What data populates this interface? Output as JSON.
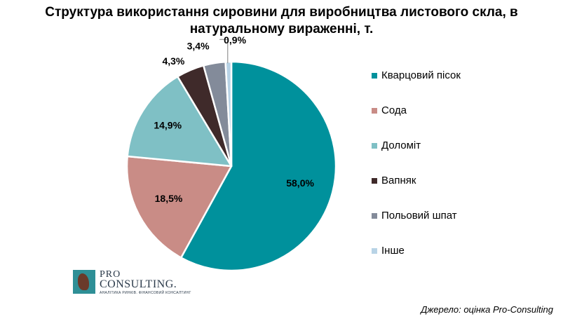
{
  "chart_data": {
    "type": "pie",
    "title_lines": [
      "Структура використання сировини для виробництва листового скла, в",
      "натуральному вираженні, т."
    ],
    "slices": [
      {
        "name": "Кварцовий пісок",
        "value": 58.0,
        "label": "58,0%",
        "color": "#00919c"
      },
      {
        "name": "Сода",
        "value": 18.5,
        "label": "18,5%",
        "color": "#c98c86"
      },
      {
        "name": "Доломіт",
        "value": 14.9,
        "label": "14,9%",
        "color": "#7fc0c5"
      },
      {
        "name": "Вапняк",
        "value": 4.3,
        "label": "4,3%",
        "color": "#3f2a2a"
      },
      {
        "name": "Польовий шпат",
        "value": 3.4,
        "label": "3,4%",
        "color": "#838b9a"
      },
      {
        "name": "Інше",
        "value": 0.9,
        "label": "0,9%",
        "color": "#b8d3e6"
      }
    ],
    "legend_position": "right"
  },
  "logo": {
    "pro": "PRO",
    "name": "CONSULTING.",
    "tagline": "АНАЛІТИКА РИНКІВ. ФІНАНСОВИЙ КОНСАЛТИНГ"
  },
  "source": "Джерело: оцінка Pro-Consulting"
}
